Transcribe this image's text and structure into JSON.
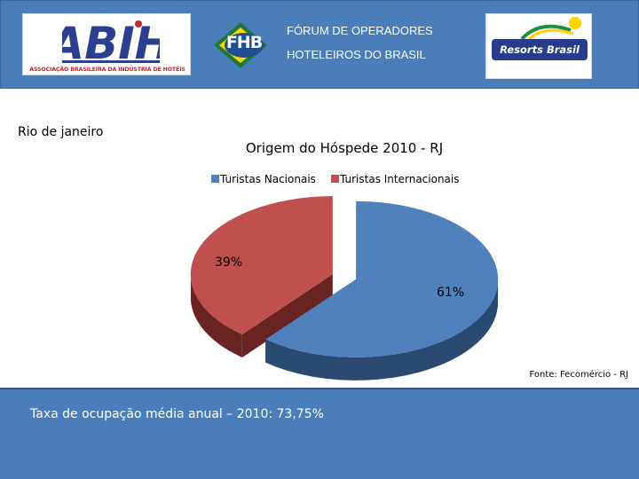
{
  "header": {
    "abih_caption": "ASSOCIAÇÃO BRASILEIRA DA INDÚSTRIA DE HOTÉIS",
    "fhb_logo_text": "FHB",
    "forum_line1": "FÓRUM  DE OPERADORES",
    "forum_line2": "HOTELEIROS DO BRASIL",
    "resorts_logo_text": "Resorts Brasil"
  },
  "region_title": "Rio de janeiro",
  "source_label": "Fonte: Fecomércio - RJ",
  "footer": {
    "occupancy_text": "Taxa de ocupação média anual – 2010: 73,75%"
  },
  "colors": {
    "header_bg": "#4a7ebb",
    "nacionais": "#4f81bd",
    "nacionais_side": "#2a4a72",
    "internacionais": "#c0504d",
    "internacionais_side": "#6a2423"
  },
  "chart_data": {
    "type": "pie",
    "title": "Origem do Hóspede 2010 - RJ",
    "legend_position": "top",
    "slices": [
      {
        "name": "Turistas Nacionais",
        "value": 61,
        "label": "61%"
      },
      {
        "name": "Turistas Internacionais",
        "value": 39,
        "label": "39%"
      }
    ]
  }
}
